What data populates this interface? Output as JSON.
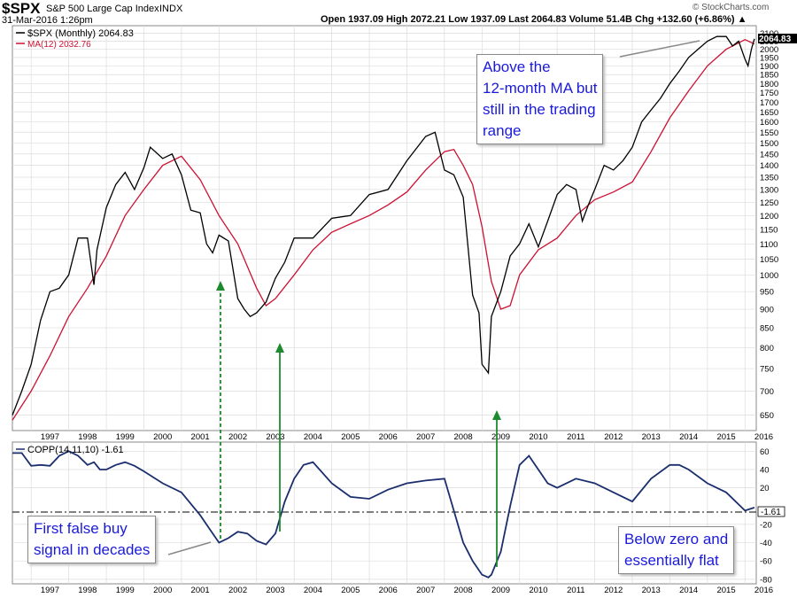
{
  "header": {
    "symbol": "$SPX",
    "name": "S&P 500 Large Cap Index",
    "exchange": "INDX",
    "date": "31-Mar-2016 1:26pm",
    "quote": "Open 1937.09  High 2072.21  Low 1937.09  Last 2064.83  Volume 51.4B  Chg +132.60 (+6.86%) ▲",
    "brand": "© StockCharts.com"
  },
  "colors": {
    "price": "#000000",
    "ma": "#cc1133",
    "copp": "#1a2e6e",
    "arrow": "#1e8a2e",
    "callout_text": "#1a1adc"
  },
  "top_legend": {
    "price": "$SPX (Monthly) 2064.83",
    "ma": "MA(12) 2032.76"
  },
  "bottom_legend": "COPP(14,11,10) -1.61",
  "price_last_label": "2064.83",
  "copp_last_label": "-1.61",
  "callouts": {
    "top_right": [
      "Above the",
      "12-month MA but",
      "still in the trading",
      "range"
    ],
    "bottom_left": [
      "First false buy",
      "signal in decades"
    ],
    "bottom_right": [
      "Below zero and",
      "essentially flat"
    ]
  },
  "chart_data": [
    {
      "type": "line",
      "title": "$SPX (Monthly)",
      "y_scale": "log",
      "ylim": [
        620,
        2150
      ],
      "xlim": [
        1996.5,
        2016.3
      ],
      "y_ticks": [
        650,
        700,
        750,
        800,
        850,
        900,
        950,
        1000,
        1050,
        1100,
        1150,
        1200,
        1250,
        1300,
        1350,
        1400,
        1450,
        1500,
        1550,
        1600,
        1650,
        1700,
        1750,
        1800,
        1850,
        1900,
        1950,
        2000,
        2050,
        2100
      ],
      "x_ticks": [
        "1997",
        "1998",
        "1999",
        "2000",
        "2001",
        "2002",
        "2003",
        "2004",
        "2005",
        "2006",
        "2007",
        "2008",
        "2009",
        "2010",
        "2011",
        "2012",
        "2013",
        "2014",
        "2015",
        "2016"
      ],
      "grid": true,
      "series": [
        {
          "name": "$SPX (Monthly)",
          "x": [
            1996.5,
            1996.75,
            1997.0,
            1997.25,
            1997.5,
            1997.75,
            1998.0,
            1998.25,
            1998.5,
            1998.67,
            1998.75,
            1999.0,
            1999.25,
            1999.5,
            1999.75,
            2000.0,
            2000.17,
            2000.5,
            2000.75,
            2001.0,
            2001.25,
            2001.5,
            2001.67,
            2001.83,
            2002.0,
            2002.25,
            2002.5,
            2002.67,
            2002.83,
            2003.0,
            2003.25,
            2003.5,
            2003.75,
            2004.0,
            2004.5,
            2005.0,
            2005.5,
            2006.0,
            2006.5,
            2007.0,
            2007.5,
            2007.75,
            2008.0,
            2008.25,
            2008.5,
            2008.75,
            2008.92,
            2009.0,
            2009.17,
            2009.25,
            2009.5,
            2009.75,
            2010.0,
            2010.25,
            2010.5,
            2010.75,
            2011.0,
            2011.25,
            2011.5,
            2011.67,
            2011.83,
            2012.0,
            2012.25,
            2012.5,
            2012.75,
            2013.0,
            2013.25,
            2013.5,
            2013.75,
            2014.0,
            2014.25,
            2014.5,
            2014.75,
            2015.0,
            2015.25,
            2015.5,
            2015.67,
            2015.83,
            2016.0,
            2016.08,
            2016.17,
            2016.25
          ],
          "values": [
            650,
            700,
            760,
            870,
            950,
            960,
            1000,
            1120,
            1120,
            970,
            1080,
            1230,
            1320,
            1370,
            1300,
            1390,
            1480,
            1430,
            1450,
            1360,
            1220,
            1210,
            1100,
            1070,
            1130,
            1110,
            930,
            900,
            880,
            890,
            920,
            990,
            1040,
            1120,
            1120,
            1190,
            1200,
            1280,
            1300,
            1420,
            1530,
            1550,
            1380,
            1360,
            1270,
            940,
            890,
            760,
            740,
            880,
            950,
            1060,
            1100,
            1170,
            1090,
            1180,
            1280,
            1320,
            1300,
            1180,
            1240,
            1300,
            1400,
            1380,
            1420,
            1480,
            1600,
            1660,
            1720,
            1800,
            1870,
            1950,
            2000,
            2050,
            2080,
            2080,
            2020,
            2050,
            1940,
            1900,
            2000,
            2065
          ]
        },
        {
          "name": "MA(12)",
          "x": [
            1996.5,
            1997.0,
            1997.5,
            1998.0,
            1998.5,
            1999.0,
            1999.5,
            2000.0,
            2000.5,
            2001.0,
            2001.5,
            2002.0,
            2002.5,
            2003.0,
            2003.25,
            2003.5,
            2004.0,
            2004.5,
            2005.0,
            2005.5,
            2006.0,
            2006.5,
            2007.0,
            2007.5,
            2008.0,
            2008.25,
            2008.5,
            2008.75,
            2009.0,
            2009.25,
            2009.5,
            2009.75,
            2010.0,
            2010.5,
            2011.0,
            2011.5,
            2012.0,
            2012.5,
            2013.0,
            2013.5,
            2014.0,
            2014.5,
            2015.0,
            2015.5,
            2016.0,
            2016.25
          ],
          "values": [
            640,
            700,
            780,
            880,
            960,
            1060,
            1200,
            1300,
            1400,
            1440,
            1340,
            1200,
            1100,
            960,
            910,
            930,
            1000,
            1080,
            1140,
            1170,
            1200,
            1240,
            1290,
            1380,
            1460,
            1470,
            1400,
            1320,
            1160,
            980,
            900,
            910,
            1000,
            1080,
            1120,
            1200,
            1260,
            1290,
            1330,
            1460,
            1620,
            1760,
            1900,
            2000,
            2060,
            2033
          ]
        }
      ]
    },
    {
      "type": "line",
      "title": "COPP(14,11,10)",
      "ylim": [
        -85,
        70
      ],
      "xlim": [
        1996.5,
        2016.3
      ],
      "y_ticks": [
        60,
        40,
        20,
        -20,
        -40,
        -60,
        -80
      ],
      "x_ticks": [
        "1997",
        "1998",
        "1999",
        "2000",
        "2001",
        "2002",
        "2003",
        "2004",
        "2005",
        "2006",
        "2007",
        "2008",
        "2009",
        "2010",
        "2011",
        "2012",
        "2013",
        "2014",
        "2015",
        "2016"
      ],
      "grid": true,
      "series": [
        {
          "name": "COPP(14,11,10)",
          "x": [
            1996.5,
            1996.75,
            1997.0,
            1997.25,
            1997.5,
            1997.75,
            1998.0,
            1998.25,
            1998.5,
            1998.67,
            1998.83,
            1999.0,
            1999.25,
            1999.5,
            1999.75,
            2000.0,
            2000.5,
            2001.0,
            2001.5,
            2001.75,
            2002.0,
            2002.25,
            2002.5,
            2002.75,
            2003.0,
            2003.25,
            2003.5,
            2003.75,
            2004.0,
            2004.25,
            2004.5,
            2005.0,
            2005.5,
            2006.0,
            2006.5,
            2007.0,
            2007.5,
            2008.0,
            2008.25,
            2008.5,
            2008.75,
            2009.0,
            2009.17,
            2009.25,
            2009.5,
            2009.75,
            2010.0,
            2010.25,
            2010.5,
            2010.75,
            2011.0,
            2011.5,
            2012.0,
            2012.5,
            2013.0,
            2013.5,
            2014.0,
            2014.25,
            2014.5,
            2015.0,
            2015.5,
            2016.0,
            2016.25
          ],
          "values": [
            58,
            58,
            44,
            45,
            44,
            55,
            60,
            55,
            45,
            48,
            40,
            40,
            45,
            48,
            44,
            38,
            25,
            15,
            -10,
            -25,
            -40,
            -35,
            -28,
            -30,
            -38,
            -42,
            -30,
            5,
            30,
            45,
            48,
            25,
            10,
            8,
            18,
            25,
            28,
            30,
            -5,
            -40,
            -60,
            -75,
            -78,
            -75,
            -50,
            0,
            45,
            55,
            40,
            25,
            20,
            30,
            25,
            15,
            5,
            30,
            45,
            45,
            40,
            25,
            15,
            -5,
            -1.61
          ]
        }
      ]
    }
  ]
}
